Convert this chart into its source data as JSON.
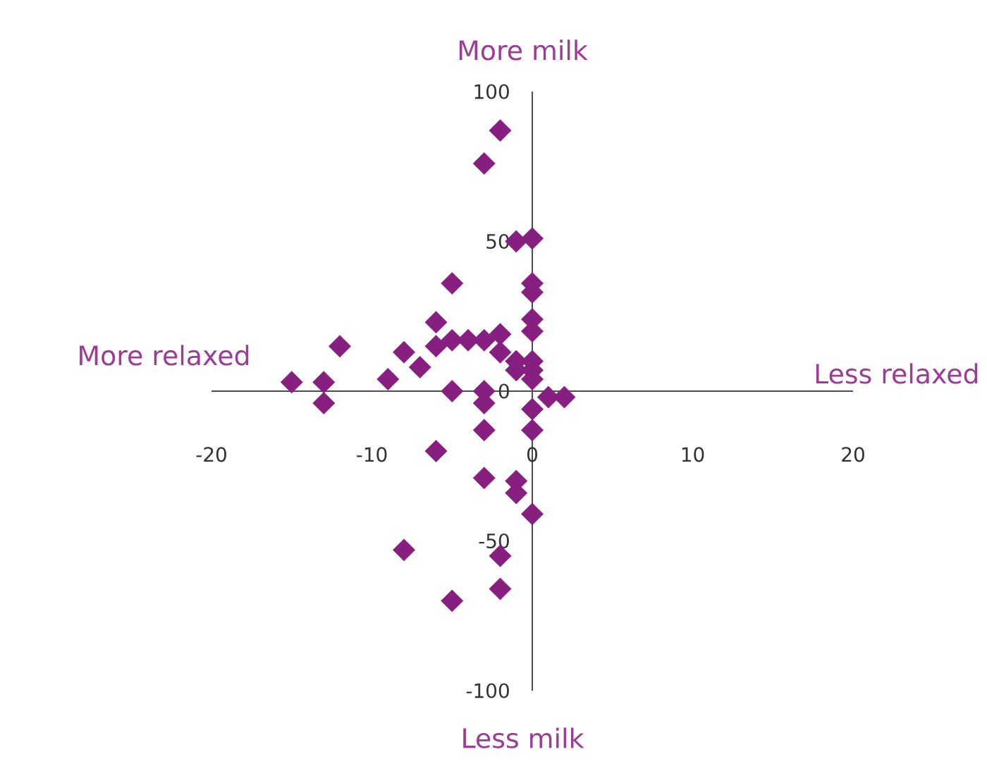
{
  "chart_data": {
    "type": "scatter",
    "marker": "diamond",
    "color": "#861f80",
    "annotations": [
      "More milk",
      "Less milk",
      "More relaxed",
      "Less relaxed"
    ],
    "xlim": [
      -20,
      20
    ],
    "xticks": [
      -20,
      -10,
      0,
      10,
      20
    ],
    "ylim": [
      -100,
      100
    ],
    "yticks": [
      -100,
      -50,
      0,
      50,
      100
    ],
    "x": [
      -2,
      -3,
      -1,
      0,
      -5,
      0,
      0,
      0,
      0,
      -6,
      -6,
      -12,
      -8,
      -7,
      -5,
      -4,
      -3,
      -2,
      -2,
      -1,
      -1,
      0,
      0,
      0,
      -9,
      -15,
      -13,
      -13,
      -5,
      -3,
      -3,
      1,
      2,
      0,
      0,
      -3,
      -6,
      -3,
      -1,
      -1,
      0,
      -8,
      -2,
      -2,
      -5
    ],
    "values": [
      87,
      76,
      50,
      51,
      36,
      36,
      33,
      24,
      20,
      23,
      15,
      15,
      13,
      8,
      17,
      17,
      17,
      19,
      13,
      10,
      7,
      10,
      7,
      4,
      4,
      3,
      3,
      -4,
      0,
      0,
      -4,
      -2,
      -2,
      -6,
      -13,
      -13,
      -20,
      -29,
      -30,
      -34,
      -41,
      -53,
      -55,
      -66,
      -70
    ]
  }
}
